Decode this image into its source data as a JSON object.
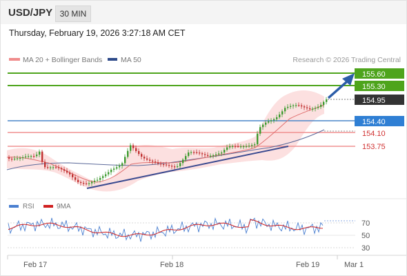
{
  "header": {
    "symbol": "USD/JPY",
    "timeframe": "30 MIN"
  },
  "timestamp": "Thursday, February 19, 2026 3:27:18 AM CET",
  "legend": {
    "ma20": "MA 20 + Bollinger Bands",
    "ma50": "MA 50",
    "source": "Research © 2026 Trading Central"
  },
  "levels": [
    {
      "label": "155.60",
      "kind": "resistance-green"
    },
    {
      "label": "155.30",
      "kind": "resistance-green"
    },
    {
      "label": "154.95",
      "kind": "current-price"
    },
    {
      "label": "154.40",
      "kind": "pivot-blue"
    },
    {
      "label": "154.10",
      "kind": "support-red"
    },
    {
      "label": "153.75",
      "kind": "support-red"
    }
  ],
  "rsi_legend": {
    "rsi": "RSI",
    "ma": "9MA"
  },
  "rsi_ticks": [
    "70",
    "50",
    "30"
  ],
  "x_axis": [
    "Feb 17",
    "Feb 18",
    "Feb 19",
    "Mar 1"
  ],
  "colors": {
    "green": "#4ea41c",
    "blue": "#4a86c8",
    "red": "#e05050",
    "candle_up": "#3c9a2e",
    "candle_down": "#c03030",
    "band": "#fbd8d8",
    "arrow": "#2c5da8",
    "ma50": "#5c6a9a"
  }
}
